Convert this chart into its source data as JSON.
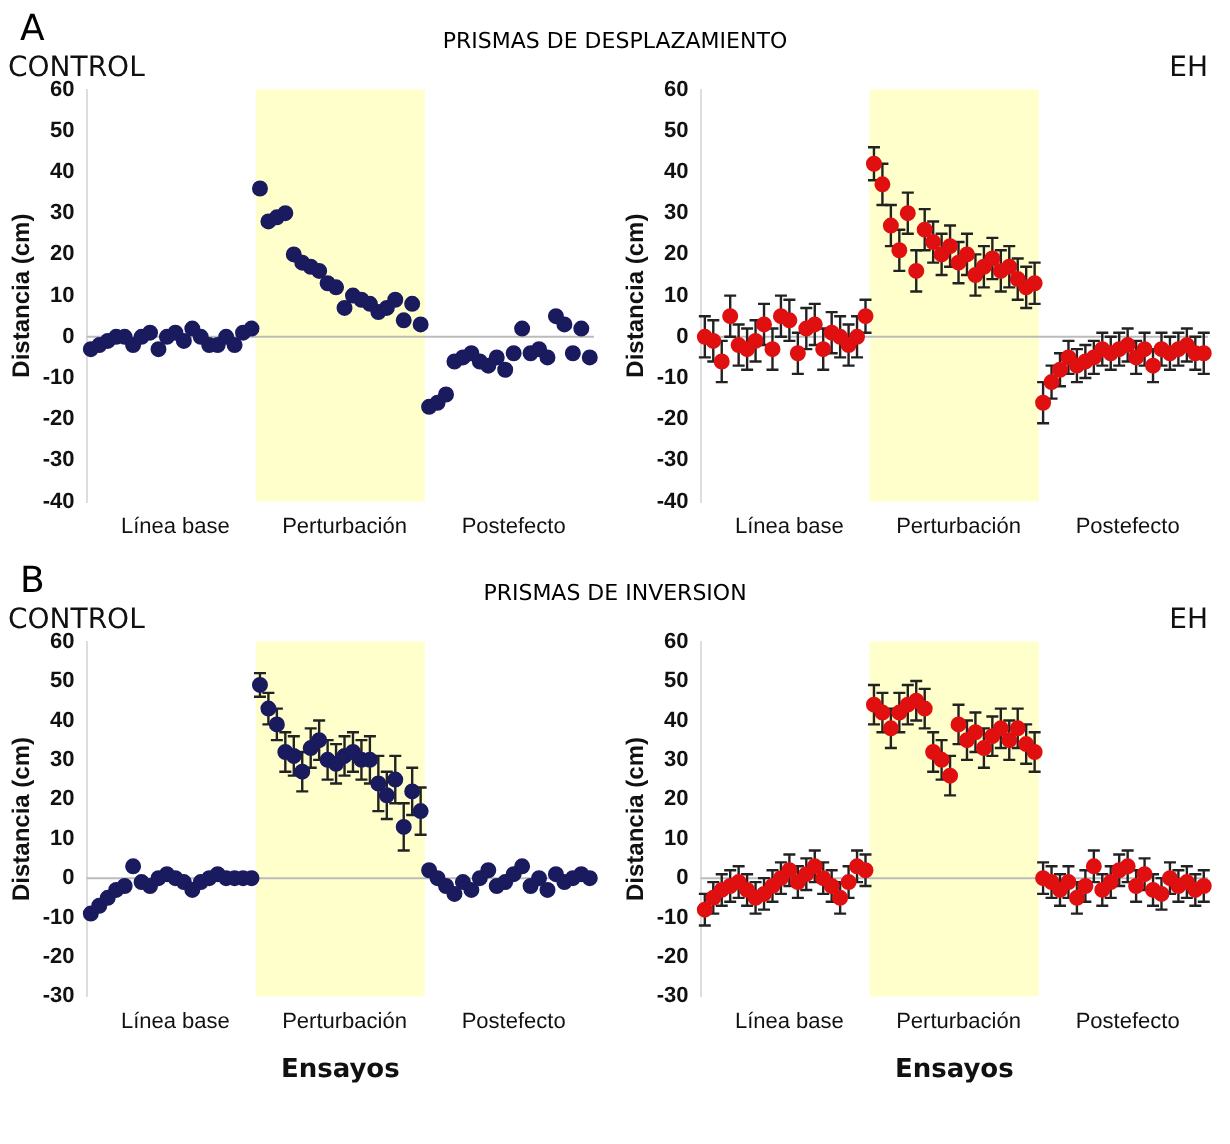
{
  "chart_data": [
    {
      "type": "scatter",
      "title": "CONTROL",
      "annotations": [
        "A",
        "PRISMAS DE DESPLAZAMIENTO"
      ],
      "ylabel": "Distancia (cm)",
      "color": "#1a1a5e",
      "marker": "circle",
      "grid": false,
      "categories": [
        null,
        null,
        null,
        null,
        null,
        null,
        null,
        null,
        null,
        null,
        "Línea base",
        null,
        null,
        null,
        null,
        null,
        null,
        null,
        null,
        null,
        null,
        null,
        null,
        null,
        null,
        null,
        null,
        null,
        null,
        null,
        "Perturbación",
        null,
        null,
        null,
        null,
        null,
        null,
        null,
        null,
        null,
        null,
        null,
        null,
        null,
        null,
        null,
        null,
        null,
        null,
        null,
        "Postefecto",
        null,
        null,
        null,
        null,
        null,
        null,
        null,
        null,
        null
      ],
      "values": [
        -3,
        -2,
        -1,
        0,
        0,
        -2,
        0,
        1,
        -3,
        0,
        1,
        -1,
        2,
        0,
        -2,
        -2,
        0,
        -2,
        1,
        2,
        36,
        28,
        29,
        30,
        20,
        18,
        17,
        16,
        13,
        12,
        7,
        10,
        9,
        8,
        6,
        7,
        9,
        4,
        8,
        3,
        -17,
        -16,
        -14,
        -6,
        -5,
        -4,
        -6,
        -7,
        -5,
        -8,
        -4,
        2,
        -4,
        -3,
        -5,
        5,
        3,
        -4,
        2,
        -5
      ],
      "ylim": [
        -40,
        60
      ],
      "yticks": [
        -40,
        -30,
        -20,
        -10,
        0,
        10,
        20,
        30,
        40,
        50,
        60
      ],
      "ref_lines": [
        {
          "axis": "y",
          "value": 0,
          "color": "#bbbbbb"
        }
      ]
    },
    {
      "type": "scatter",
      "title": "EH",
      "ylabel": "Distancia (cm)",
      "color": "#e01010",
      "marker": "circle",
      "grid": false,
      "categories": [
        null,
        null,
        null,
        null,
        null,
        null,
        null,
        null,
        null,
        null,
        "Línea base",
        null,
        null,
        null,
        null,
        null,
        null,
        null,
        null,
        null,
        null,
        null,
        null,
        null,
        null,
        null,
        null,
        null,
        null,
        null,
        "Perturbación",
        null,
        null,
        null,
        null,
        null,
        null,
        null,
        null,
        null,
        null,
        null,
        null,
        null,
        null,
        null,
        null,
        null,
        null,
        null,
        "Postefecto",
        null,
        null,
        null,
        null,
        null,
        null,
        null,
        null,
        null
      ],
      "values": [
        0,
        -1,
        -6,
        5,
        -2,
        -3,
        -1,
        3,
        -3,
        5,
        4,
        -4,
        2,
        3,
        -3,
        1,
        0,
        -2,
        0,
        5,
        42,
        37,
        27,
        21,
        30,
        16,
        26,
        23,
        20,
        22,
        18,
        20,
        15,
        17,
        19,
        16,
        17,
        14,
        12,
        13,
        -16,
        -11,
        -8,
        -5,
        -7,
        -6,
        -5,
        -3,
        -4,
        -3,
        -2,
        -5,
        -3,
        -7,
        -3,
        -4,
        -3,
        -2,
        -4,
        -4
      ],
      "errors": [
        5,
        5,
        5,
        5,
        5,
        5,
        5,
        5,
        5,
        5,
        5,
        5,
        5,
        5,
        5,
        5,
        5,
        5,
        5,
        4,
        4,
        5,
        5,
        5,
        5,
        5,
        5,
        5,
        5,
        5,
        5,
        5,
        5,
        5,
        5,
        5,
        5,
        5,
        5,
        5,
        5,
        4,
        4,
        4,
        4,
        4,
        4,
        4,
        4,
        4,
        4,
        4,
        4,
        4,
        4,
        4,
        4,
        4,
        4,
        5
      ],
      "ylim": [
        -40,
        60
      ],
      "yticks": [
        -40,
        -30,
        -20,
        -10,
        0,
        10,
        20,
        30,
        40,
        50,
        60
      ],
      "ref_lines": [
        {
          "axis": "y",
          "value": 0,
          "color": "#bbbbbb"
        }
      ]
    },
    {
      "type": "scatter",
      "title": "CONTROL",
      "annotations": [
        "B",
        "PRISMAS DE INVERSION"
      ],
      "ylabel": "Distancia (cm)",
      "xlabel": "Ensayos",
      "color": "#1a1a5e",
      "marker": "circle",
      "grid": false,
      "categories": [
        null,
        null,
        null,
        null,
        null,
        null,
        null,
        null,
        null,
        null,
        "Línea base",
        null,
        null,
        null,
        null,
        null,
        null,
        null,
        null,
        null,
        null,
        null,
        null,
        null,
        null,
        null,
        null,
        null,
        null,
        null,
        "Perturbación",
        null,
        null,
        null,
        null,
        null,
        null,
        null,
        null,
        null,
        null,
        null,
        null,
        null,
        null,
        null,
        null,
        null,
        null,
        null,
        "Postefecto",
        null,
        null,
        null,
        null,
        null,
        null,
        null,
        null,
        null
      ],
      "values": [
        -9,
        -7,
        -5,
        -3,
        -2,
        3,
        -1,
        -2,
        0,
        1,
        0,
        -1,
        -3,
        -1,
        0,
        1,
        0,
        0,
        0,
        0,
        49,
        43,
        39,
        32,
        31,
        27,
        33,
        35,
        30,
        29,
        31,
        32,
        30,
        30,
        24,
        21,
        25,
        13,
        22,
        17,
        2,
        0,
        -2,
        -4,
        -1,
        -3,
        0,
        2,
        -2,
        -1,
        1,
        3,
        -2,
        0,
        -3,
        1,
        -1,
        0,
        1,
        0
      ],
      "errors": [
        null,
        null,
        null,
        null,
        null,
        null,
        null,
        null,
        null,
        null,
        null,
        null,
        null,
        null,
        null,
        null,
        null,
        null,
        null,
        null,
        3,
        4,
        4,
        5,
        5,
        5,
        5,
        5,
        5,
        5,
        5,
        5,
        5,
        6,
        7,
        6,
        6,
        6,
        6,
        6,
        null,
        null,
        null,
        null,
        null,
        null,
        null,
        null,
        null,
        null,
        null,
        null,
        null,
        null,
        null,
        null,
        null,
        null,
        null,
        null
      ],
      "ylim": [
        -30,
        60
      ],
      "yticks": [
        -30,
        -20,
        -10,
        0,
        10,
        20,
        30,
        40,
        50,
        60
      ],
      "ref_lines": [
        {
          "axis": "y",
          "value": 0,
          "color": "#bbbbbb"
        }
      ]
    },
    {
      "type": "scatter",
      "title": "EH",
      "ylabel": "Distancia (cm)",
      "xlabel": "Ensayos",
      "color": "#e01010",
      "marker": "circle",
      "grid": false,
      "categories": [
        null,
        null,
        null,
        null,
        null,
        null,
        null,
        null,
        null,
        null,
        "Línea base",
        null,
        null,
        null,
        null,
        null,
        null,
        null,
        null,
        null,
        null,
        null,
        null,
        null,
        null,
        null,
        null,
        null,
        null,
        null,
        "Perturbación",
        null,
        null,
        null,
        null,
        null,
        null,
        null,
        null,
        null,
        null,
        null,
        null,
        null,
        null,
        null,
        null,
        null,
        null,
        null,
        "Postefecto",
        null,
        null,
        null,
        null,
        null,
        null,
        null,
        null,
        null
      ],
      "values": [
        -8,
        -5,
        -3,
        -2,
        -1,
        -3,
        -5,
        -4,
        -2,
        0,
        2,
        -1,
        1,
        3,
        0,
        -2,
        -5,
        -1,
        3,
        2,
        44,
        42,
        38,
        42,
        44,
        45,
        43,
        32,
        30,
        26,
        39,
        35,
        37,
        33,
        36,
        38,
        35,
        38,
        34,
        32,
        0,
        -1,
        -3,
        -1,
        -5,
        -2,
        3,
        -3,
        -1,
        2,
        3,
        -2,
        1,
        -3,
        -4,
        0,
        -2,
        -1,
        -3,
        -2
      ],
      "errors": [
        4,
        4,
        4,
        4,
        4,
        4,
        4,
        4,
        4,
        4,
        4,
        4,
        4,
        4,
        4,
        4,
        4,
        4,
        4,
        4,
        5,
        5,
        5,
        5,
        5,
        5,
        5,
        5,
        5,
        5,
        5,
        5,
        5,
        5,
        5,
        5,
        5,
        5,
        5,
        5,
        4,
        4,
        4,
        4,
        4,
        4,
        4,
        4,
        4,
        4,
        4,
        4,
        4,
        4,
        4,
        4,
        4,
        4,
        4,
        4
      ],
      "ylim": [
        -30,
        60
      ],
      "yticks": [
        -30,
        -20,
        -10,
        0,
        10,
        20,
        30,
        40,
        50,
        60
      ],
      "ref_lines": [
        {
          "axis": "y",
          "value": 0,
          "color": "#bbbbbb"
        }
      ]
    }
  ]
}
